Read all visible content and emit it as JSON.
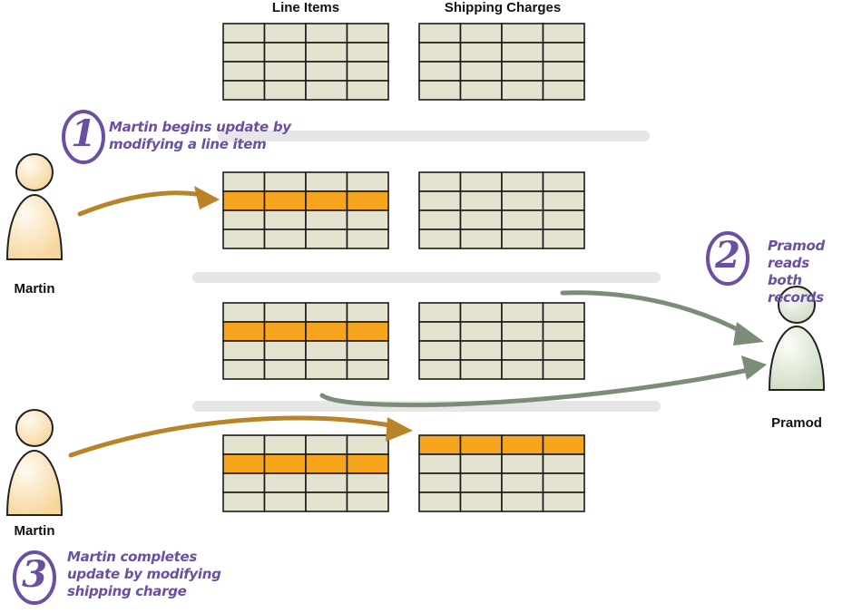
{
  "headers": {
    "line_items": "Line Items",
    "shipping_charges": "Shipping Charges"
  },
  "actors": {
    "martin_top": "Martin",
    "martin_bottom": "Martin",
    "pramod": "Pramod"
  },
  "steps": [
    {
      "number": "1",
      "lines": [
        "Martin begins update by",
        "modifying a line item"
      ]
    },
    {
      "number": "2",
      "lines": [
        "Pramod reads",
        "both records"
      ]
    },
    {
      "number": "3",
      "lines": [
        "Martin completes",
        "update by modifying",
        "shipping charge"
      ]
    }
  ],
  "stages": [
    {
      "line_items_highlight_row": null,
      "shipping_highlight_row": null
    },
    {
      "line_items_highlight_row": 1,
      "shipping_highlight_row": null
    },
    {
      "line_items_highlight_row": 1,
      "shipping_highlight_row": null
    },
    {
      "line_items_highlight_row": 1,
      "shipping_highlight_row": 0
    }
  ],
  "colors": {
    "cell": "#e3e3cf",
    "highlight": "#f7a51c",
    "grid_line": "#1a1a1a",
    "separator": "#e6e6e6",
    "martin_arrow": "#b98427",
    "pramod_arrow": "#7d8c78",
    "martin_fill": "#fde8c6",
    "pramod_fill": "#e6eedd",
    "step_text": "#6a4fa3"
  }
}
